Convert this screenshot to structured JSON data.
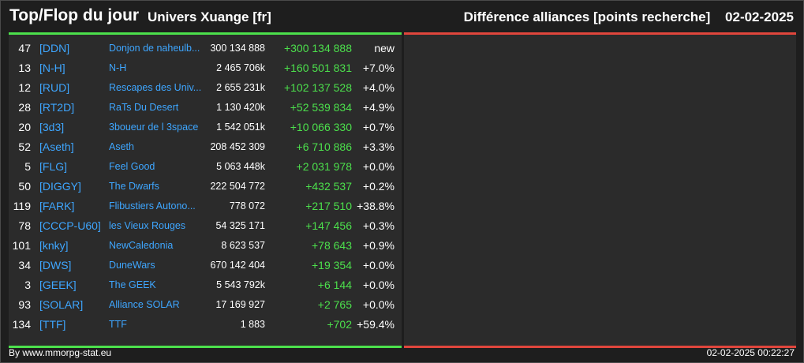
{
  "header": {
    "title": "Top/Flop du jour",
    "universe": "Univers Xuange [fr]",
    "metric": "Différence alliances [points recherche]",
    "date": "02-02-2025"
  },
  "colors": {
    "top_accent": "#4ce04c",
    "flop_accent": "#e0463c",
    "link": "#3ea6ff"
  },
  "rows": [
    {
      "rank": "47",
      "tag": "[DDN]",
      "name": "Donjon de naheulb...",
      "points": "300 134 888",
      "diff": "+300 134 888",
      "pct": "new"
    },
    {
      "rank": "13",
      "tag": "[N-H]",
      "name": "N-H",
      "points": "2 465 706k",
      "diff": "+160 501 831",
      "pct": "+7.0%"
    },
    {
      "rank": "12",
      "tag": "[RUD]",
      "name": "Rescapes des Univ...",
      "points": "2 655 231k",
      "diff": "+102 137 528",
      "pct": "+4.0%"
    },
    {
      "rank": "28",
      "tag": "[RT2D]",
      "name": "RaTs Du Desert",
      "points": "1 130 420k",
      "diff": "+52 539 834",
      "pct": "+4.9%"
    },
    {
      "rank": "20",
      "tag": "[3d3]",
      "name": "3boueur de l 3space",
      "points": "1 542 051k",
      "diff": "+10 066 330",
      "pct": "+0.7%"
    },
    {
      "rank": "52",
      "tag": "[Aseth]",
      "name": "Aseth",
      "points": "208 452 309",
      "diff": "+6 710 886",
      "pct": "+3.3%"
    },
    {
      "rank": "5",
      "tag": "[FLG]",
      "name": "Feel Good",
      "points": "5 063 448k",
      "diff": "+2 031 978",
      "pct": "+0.0%"
    },
    {
      "rank": "50",
      "tag": "[DIGGY]",
      "name": "The Dwarfs",
      "points": "222 504 772",
      "diff": "+432 537",
      "pct": "+0.2%"
    },
    {
      "rank": "119",
      "tag": "[FARK]",
      "name": "Flibustiers Autono...",
      "points": "778 072",
      "diff": "+217 510",
      "pct": "+38.8%"
    },
    {
      "rank": "78",
      "tag": "[CCCP-U60]",
      "name": "les Vieux Rouges",
      "points": "54 325 171",
      "diff": "+147 456",
      "pct": "+0.3%"
    },
    {
      "rank": "101",
      "tag": "[knky]",
      "name": "NewCaledonia",
      "points": "8 623 537",
      "diff": "+78 643",
      "pct": "+0.9%"
    },
    {
      "rank": "34",
      "tag": "[DWS]",
      "name": "DuneWars",
      "points": "670 142 404",
      "diff": "+19 354",
      "pct": "+0.0%"
    },
    {
      "rank": "3",
      "tag": "[GEEK]",
      "name": "The GEEK",
      "points": "5 543 792k",
      "diff": "+6 144",
      "pct": "+0.0%"
    },
    {
      "rank": "93",
      "tag": "[SOLAR]",
      "name": "Alliance SOLAR",
      "points": "17 169 927",
      "diff": "+2 765",
      "pct": "+0.0%"
    },
    {
      "rank": "134",
      "tag": "[TTF]",
      "name": "TTF",
      "points": "1 883",
      "diff": "+702",
      "pct": "+59.4%"
    }
  ],
  "footer": {
    "credit": "By www.mmorpg-stat.eu",
    "timestamp": "02-02-2025 00:22:27"
  }
}
